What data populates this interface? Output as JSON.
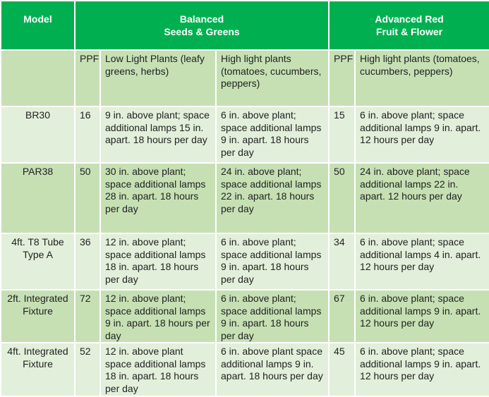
{
  "header": {
    "model": "Model",
    "balanced_line1": "Balanced",
    "balanced_line2": "Seeds & Greens",
    "advanced_line1": "Advanced Red",
    "advanced_line2": "Fruit & Flower"
  },
  "subheader": [
    "",
    "PPF",
    "Low Light Plants (leafy greens, herbs)",
    "High light plants (tomatoes, cucumbers, peppers)",
    "PPF",
    "High light plants (tomatoes, cucumbers, peppers)"
  ],
  "rows": [
    [
      "BR30",
      "16",
      "9 in. above plant; space additional lamps 15 in. apart. 18 hours per day",
      "6 in. above plant; space additional lamps 9 in. apart. 18 hours per day",
      "15",
      "6 in. above plant; space additional lamps 9 in. apart. 12 hours per day"
    ],
    [
      "PAR38",
      "50",
      "30 in. above plant; space additional lamps 28 in. apart. 18 hours per day",
      "24 in. above plant; space additional lamps 22 in. apart. 18 hours per day",
      "50",
      "24 in. above plant; space additional lamps 22 in. apart. 12 hours per day"
    ],
    [
      "4ft. T8 Tube Type A",
      "36",
      "12 in. above plant; space additional lamps 18 in. apart. 18 hours per day",
      "6 in. above plant; space additional lamps 9 in. apart. 18 hours per day",
      "34",
      "6 in. above plant; space additional lamps 4 in. apart. 12 hours per day"
    ],
    [
      "2ft. Integrated Fixture",
      "72",
      "12 in. above plant; space additional lamps 9 in. apart. 18 hours per day",
      "6 in. above plant; space additional lamps 9 in. apart. 18 hours per day",
      "67",
      "6 in. above plant; space additional lamps 9 in. apart. 12 hours per day"
    ],
    [
      "4ft. Integrated Fixture",
      "52",
      "12 in. above plant space additional lamps 18 in. apart. 18 hours per day",
      "6 in. above plant space additional lamps 9 in. apart. 18 hours per day",
      "45",
      "6 in. above plant; space additional lamps 9 in. apart. 12 hours per day"
    ]
  ],
  "colors": {
    "header": "#00b050",
    "row_dark": "#c6e0b4",
    "row_light": "#e2efda"
  }
}
